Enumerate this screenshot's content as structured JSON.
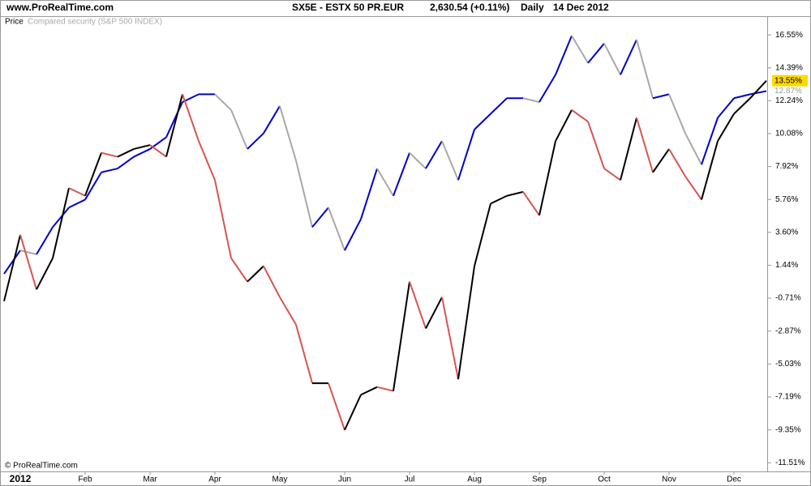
{
  "chart_data": {
    "type": "line",
    "site": "www.ProRealTime.com",
    "title": "SX5E - ESTX 50 PR.EUR",
    "quote": "2,630.54 (+0.11%)",
    "period": "Daily",
    "date": "14 Dec 2012",
    "copyright": "© ProRealTime.com",
    "categories": [
      null,
      "2012",
      null,
      null,
      null,
      "Feb",
      null,
      null,
      null,
      "Mar",
      null,
      null,
      null,
      "Apr",
      null,
      null,
      null,
      "May",
      null,
      null,
      null,
      "Jun",
      null,
      null,
      null,
      "Jul",
      null,
      null,
      null,
      "Aug",
      null,
      null,
      null,
      "Sep",
      null,
      null,
      null,
      "Oct",
      null,
      null,
      null,
      "Nov",
      null,
      null,
      null,
      "Dec",
      null,
      null
    ],
    "series": [
      {
        "name": "Price",
        "up_color": "#000000",
        "down_color": "#d9534f",
        "values": [
          -0.91,
          3.44,
          -0.14,
          1.91,
          6.51,
          6.0,
          8.82,
          8.56,
          9.07,
          9.33,
          8.56,
          12.66,
          9.59,
          7.03,
          1.91,
          0.37,
          1.39,
          -0.65,
          -2.45,
          -6.29,
          -6.29,
          -9.36,
          -7.05,
          -6.54,
          -6.8,
          0.37,
          -2.7,
          -0.65,
          -6.03,
          1.39,
          5.49,
          6.0,
          6.26,
          4.72,
          9.59,
          11.63,
          10.87,
          7.79,
          7.03,
          11.12,
          7.54,
          9.07,
          7.28,
          5.75,
          9.59,
          11.38,
          12.4,
          13.55
        ],
        "end_label": {
          "value": 13.55,
          "label": "13.55%"
        }
      },
      {
        "name": "Compared security (S&P 500 INDEX)",
        "up_color": "#0000cc",
        "down_color": "#a8a8a8",
        "values": [
          0.88,
          2.42,
          2.16,
          3.95,
          5.23,
          5.75,
          7.54,
          7.79,
          8.56,
          9.07,
          9.84,
          12.15,
          12.66,
          12.66,
          11.63,
          9.07,
          10.1,
          11.89,
          8.31,
          3.95,
          5.23,
          2.42,
          4.47,
          7.79,
          6.0,
          8.82,
          7.79,
          9.59,
          7.03,
          10.35,
          11.38,
          12.4,
          12.4,
          12.15,
          13.94,
          16.5,
          14.71,
          15.99,
          13.94,
          16.24,
          12.4,
          12.66,
          10.1,
          8.05,
          11.12,
          12.4,
          12.66,
          12.87
        ],
        "end_label": {
          "value": 12.87,
          "label": "12.87%"
        }
      }
    ],
    "ylim": [
      -11.97,
      17.78
    ],
    "yticks": [
      {
        "value": 16.55,
        "label": "16.55%"
      },
      {
        "value": 14.39,
        "label": "14.39%"
      },
      {
        "value": 12.24,
        "label": "12.24%"
      },
      {
        "value": 10.08,
        "label": "10.08%"
      },
      {
        "value": 7.92,
        "label": "7.92%"
      },
      {
        "value": 5.76,
        "label": "5.76%"
      },
      {
        "value": 3.6,
        "label": "3.60%"
      },
      {
        "value": 1.44,
        "label": "1.44%"
      },
      {
        "value": -0.71,
        "label": "-0.71%"
      },
      {
        "value": -2.87,
        "label": "-2.87%"
      },
      {
        "value": -5.03,
        "label": "-5.03%"
      },
      {
        "value": -7.19,
        "label": "-7.19%"
      },
      {
        "value": -9.35,
        "label": "-9.35%"
      },
      {
        "value": -11.51,
        "label": "-11.51%"
      }
    ],
    "grid": false
  }
}
